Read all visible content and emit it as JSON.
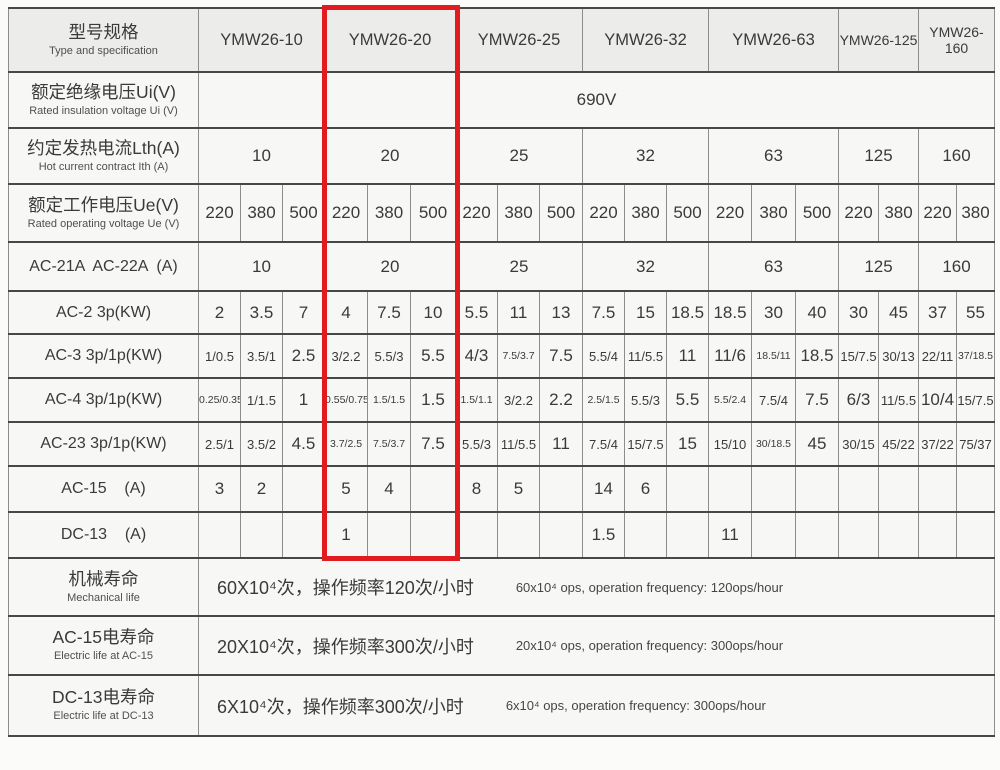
{
  "colors": {
    "highlight_red": "#e11b20",
    "header_bg": "#ececea",
    "cell_bg": "#f7f7f5",
    "grid_line": "#474747"
  },
  "header": {
    "label_zh": "型号规格",
    "label_en": "Type and specification",
    "models": [
      "YMW26-10",
      "YMW26-20",
      "YMW26-25",
      "YMW26-32",
      "YMW26-63",
      "YMW26-125",
      "YMW26-160"
    ]
  },
  "highlight": {
    "model": "YMW26-20"
  },
  "rows": {
    "insulation": {
      "label_zh": "额定绝缘电压Ui(V)",
      "label_en": "Rated insulation voltage Ui (V)",
      "value": "690V"
    },
    "thermal": {
      "label_zh": "约定发热电流Lth(A)",
      "label_en": "Hot current contract Ith (A)",
      "values": [
        "10",
        "20",
        "25",
        "32",
        "63",
        "125",
        "160"
      ]
    },
    "voltage": {
      "label_zh": "额定工作电压Ue(V)",
      "label_en": "Rated operating voltage Ue (V)",
      "values": [
        "220",
        "380",
        "500",
        "220",
        "380",
        "500",
        "220",
        "380",
        "500",
        "220",
        "380",
        "500",
        "220",
        "380",
        "500",
        "220",
        "380",
        "220",
        "380"
      ]
    },
    "ac2122": {
      "label": "AC-21A  AC-22A  (A)",
      "values": [
        "10",
        "20",
        "25",
        "32",
        "63",
        "125",
        "160"
      ]
    },
    "ac2": {
      "label": "AC-2 3p(KW)",
      "values": [
        "2",
        "3.5",
        "7",
        "4",
        "7.5",
        "10",
        "5.5",
        "11",
        "13",
        "7.5",
        "15",
        "18.5",
        "18.5",
        "30",
        "40",
        "30",
        "45",
        "37",
        "55"
      ]
    },
    "ac3": {
      "label": "AC-3 3p/1p(KW)",
      "values": [
        "1/0.5",
        "3.5/1",
        "2.5",
        "3/2.2",
        "5.5/3",
        "5.5",
        "4/3",
        "7.5/3.7",
        "7.5",
        "5.5/4",
        "11/5.5",
        "11",
        "11/6",
        "18.5/11",
        "18.5",
        "15/7.5",
        "30/13",
        "22/11",
        "37/18.5"
      ]
    },
    "ac4": {
      "label": "AC-4 3p/1p(KW)",
      "values": [
        "0.25/0.35",
        "1/1.5",
        "1",
        "0.55/0.75",
        "1.5/1.5",
        "1.5",
        "1.5/1.1",
        "3/2.2",
        "2.2",
        "2.5/1.5",
        "5.5/3",
        "5.5",
        "5.5/2.4",
        "7.5/4",
        "7.5",
        "6/3",
        "11/5.5",
        "10/4",
        "15/7.5"
      ]
    },
    "ac23": {
      "label": "AC-23 3p/1p(KW)",
      "values": [
        "2.5/1",
        "3.5/2",
        "4.5",
        "3.7/2.5",
        "7.5/3.7",
        "7.5",
        "5.5/3",
        "11/5.5",
        "11",
        "7.5/4",
        "15/7.5",
        "15",
        "15/10",
        "30/18.5",
        "45",
        "30/15",
        "45/22",
        "37/22",
        "75/37"
      ]
    },
    "ac15": {
      "label": "AC-15    (A)",
      "values": [
        "3",
        "2",
        "",
        "5",
        "4",
        "",
        "8",
        "5",
        "",
        "14",
        "6",
        "",
        "",
        "",
        "",
        "",
        "",
        "",
        ""
      ]
    },
    "dc13": {
      "label": "DC-13    (A)",
      "values": [
        "",
        "",
        "",
        "1",
        "",
        "",
        "",
        "",
        "",
        "1.5",
        "",
        "",
        "11",
        "",
        "",
        "",
        "",
        "",
        ""
      ]
    },
    "mech": {
      "label_zh": "机械寿命",
      "label_en": "Mechanical life",
      "value_zh": "60X10⁴次，操作频率120次/小时",
      "value_en": "60x10⁴ ops, operation frequency: 120ops/hour"
    },
    "ac15life": {
      "label_zh": "AC-15电寿命",
      "label_en": "Electric life at AC-15",
      "value_zh": "20X10⁴次，操作频率300次/小时",
      "value_en": "20x10⁴ ops, operation frequency: 300ops/hour"
    },
    "dc13life": {
      "label_zh": "DC-13电寿命",
      "label_en": "Electric life at DC-13",
      "value_zh": "6X10⁴次，操作频率300次/小时",
      "value_en": "6x10⁴ ops, operation frequency: 300ops/hour"
    }
  }
}
